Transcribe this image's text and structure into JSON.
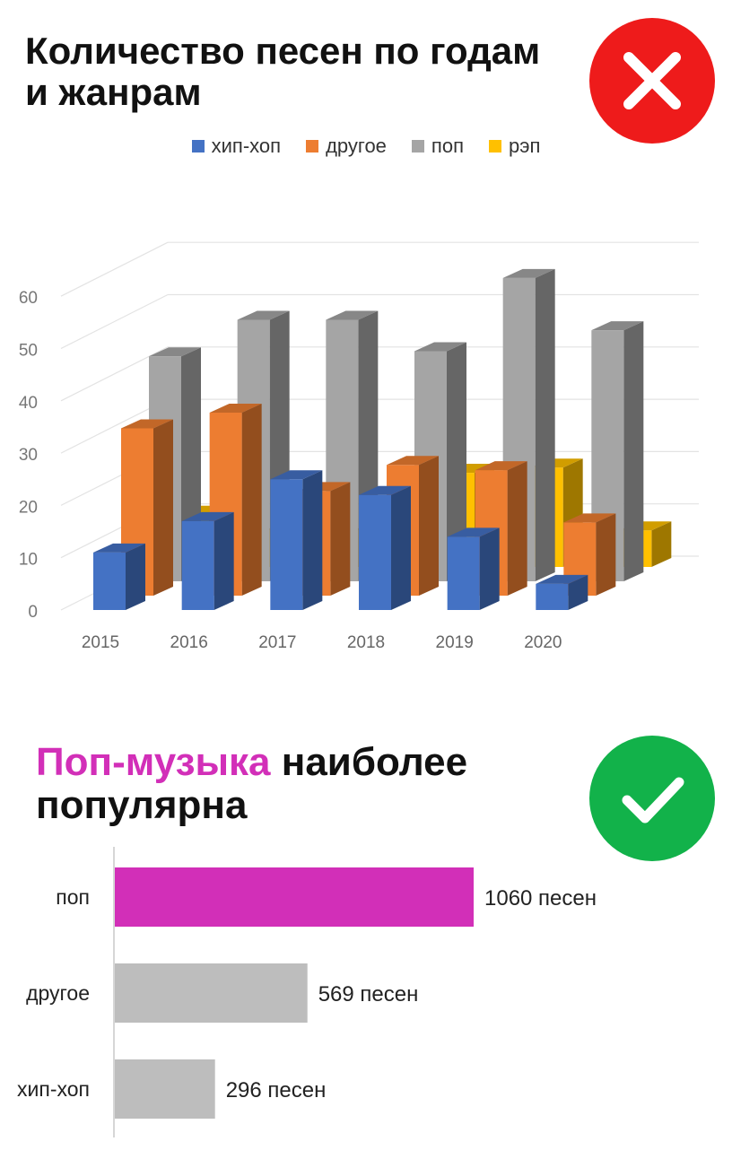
{
  "top": {
    "title_line1": "Количество песен по годам",
    "title_line2": "и жанрам",
    "badge_icon": "close-icon",
    "badge_color": "#ee1b1b"
  },
  "bottom": {
    "title_accent": "Поп-музыка",
    "title_rest": " наиболее",
    "title_line2": "популярна",
    "accent_color": "#d22fb8",
    "badge_icon": "checkmark-icon",
    "badge_color": "#12b24a"
  },
  "chart_data": [
    {
      "type": "bar",
      "style": "3d-clustered",
      "title": "Количество песен по годам и жанрам",
      "categories": [
        "2015",
        "2016",
        "2017",
        "2018",
        "2019",
        "2020"
      ],
      "series": [
        {
          "name": "хип-хоп",
          "color": "#4472c4",
          "values": [
            11,
            17,
            25,
            22,
            14,
            5
          ]
        },
        {
          "name": "другое",
          "color": "#ed7d31",
          "values": [
            32,
            35,
            20,
            25,
            24,
            14
          ]
        },
        {
          "name": "поп",
          "color": "#a5a5a5",
          "values": [
            43,
            50,
            50,
            44,
            58,
            48
          ]
        },
        {
          "name": "рэп",
          "color": "#ffc000",
          "values": [
            10,
            7,
            7,
            18,
            19,
            7
          ]
        }
      ],
      "y_ticks": [
        "0",
        "10",
        "20",
        "30",
        "40",
        "50",
        "60"
      ],
      "ylim": [
        0,
        60
      ],
      "legend_position": "top",
      "grid": true
    },
    {
      "type": "bar",
      "orientation": "horizontal",
      "title": "Поп-музыка наиболее популярна",
      "categories": [
        "поп",
        "другое",
        "хип-хоп"
      ],
      "values": [
        1060,
        569,
        296
      ],
      "value_labels": [
        "1060 песен",
        "569 песен",
        "296 песен"
      ],
      "colors": [
        "#d22fb8",
        "#bdbdbd",
        "#bdbdbd"
      ]
    }
  ]
}
